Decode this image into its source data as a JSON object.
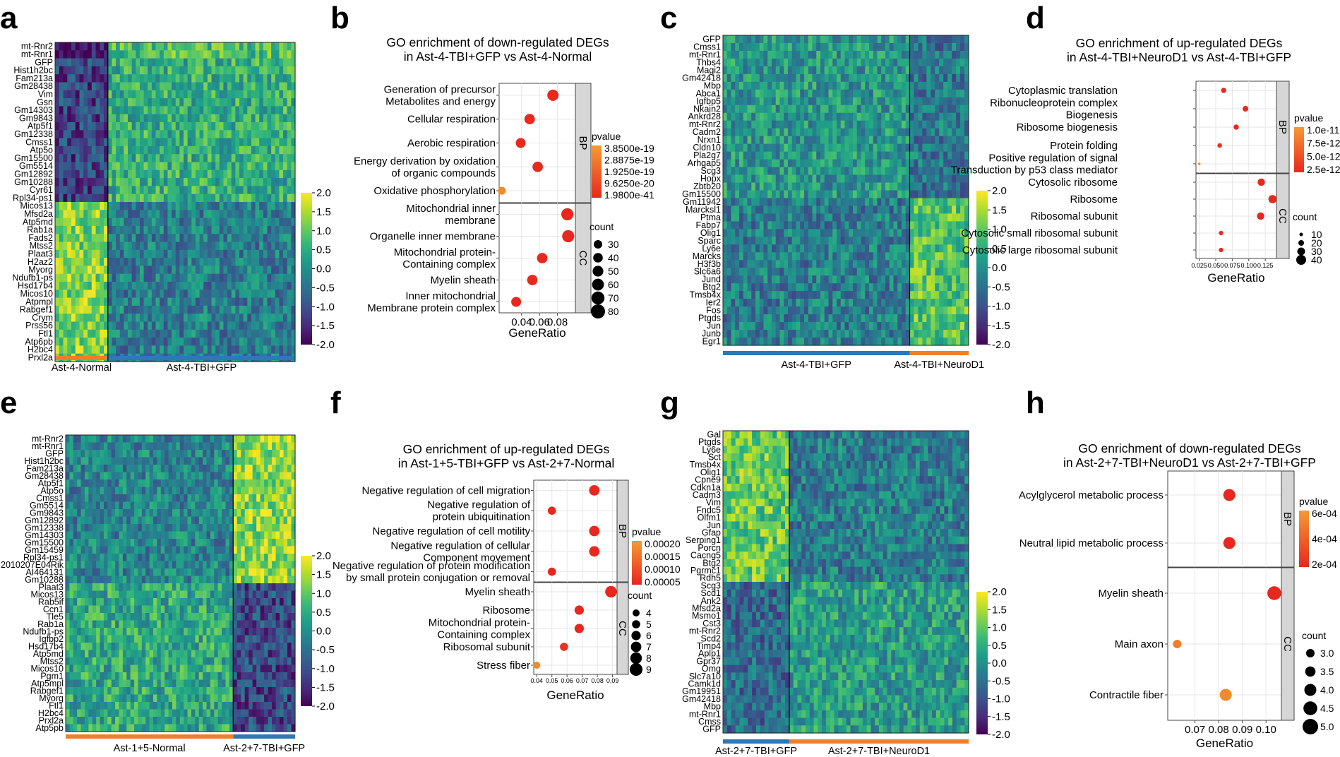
{
  "panel_letters": [
    "a",
    "b",
    "c",
    "d",
    "e",
    "f",
    "g",
    "h"
  ],
  "colors": {
    "orange": "#f07f2a",
    "blue": "#2e78b5",
    "red": "#e8281e",
    "strip_bg": "#d6d6d6",
    "viridis": [
      "#440154",
      "#482878",
      "#3e4a89",
      "#31688e",
      "#26828e",
      "#1f9e89",
      "#35b779",
      "#6ece58",
      "#b5de2b",
      "#fde725"
    ]
  },
  "chart_data": [
    {
      "id": "a",
      "type": "heatmap",
      "genes": [
        "mt-Rnr2",
        "mt-Rnr1",
        "GFP",
        "Hist1h2bc",
        "Fam213a",
        "Gm28438",
        "Vim",
        "Gsn",
        "Gm14303",
        "Gm9843",
        "Atp5f1",
        "Gm12338",
        "Cmss1",
        "Atp5o",
        "Gm15500",
        "Gm5514",
        "Gm12892",
        "Gm10288",
        "Cyr61",
        "Rpl34-ps1",
        "Micos13",
        "Mfsd2a",
        "Atp5md",
        "Rab1a",
        "Fads2",
        "Mtss2",
        "Plaat3",
        "H2az2",
        "Myorg",
        "Ndufb1-ps",
        "Hsd17b4",
        "Micos10",
        "Atpmpl",
        "Rabgef1",
        "Crym",
        "Prss56",
        "Ftl1",
        "Atp6pb",
        "H2bc4",
        "Prxl2a"
      ],
      "groups": [
        {
          "name": "Ast-4-Normal",
          "color": "orange",
          "fraction": 0.22
        },
        {
          "name": "Ast-4-TBI+GFP",
          "color": "blue",
          "fraction": 0.78
        }
      ],
      "colorbar": {
        "min": -2.0,
        "max": 2.0,
        "ticks": [
          "2.0",
          "1.5",
          "1.0",
          "0.5",
          "0.0",
          "-0.5",
          "-1.0",
          "-1.5",
          "-2.0"
        ]
      }
    },
    {
      "id": "b",
      "type": "scatter",
      "title": [
        "GO enrichment of down-regulated DEGs",
        "in Ast-4-TBI+GFP vs Ast-4-Normal"
      ],
      "xlabel": "GeneRatio",
      "xlim": [
        0.015,
        0.1
      ],
      "xticks": [
        {
          "v": 0.04,
          "label": "0.04"
        },
        {
          "v": 0.06,
          "label": "0.06"
        },
        {
          "v": 0.08,
          "label": "0.08"
        }
      ],
      "facets": [
        {
          "name": "BP",
          "terms": [
            {
              "label": [
                "Generation of precursor",
                "Metabolites and energy"
              ],
              "x": 0.075,
              "count": 55,
              "color": "#e8291d"
            },
            {
              "label": [
                "Cellular respiration"
              ],
              "x": 0.049,
              "count": 48,
              "color": "#e8291d"
            },
            {
              "label": [
                "Aerobic respiration"
              ],
              "x": 0.039,
              "count": 42,
              "color": "#e8291d"
            },
            {
              "label": [
                "Energy derivation by oxidation",
                "of organic compounds"
              ],
              "x": 0.058,
              "count": 48,
              "color": "#e8291d"
            },
            {
              "label": [
                "Oxidative phosphorylation"
              ],
              "x": 0.018,
              "count": 25,
              "color": "#f08a2c"
            }
          ]
        },
        {
          "name": "CC",
          "terms": [
            {
              "label": [
                "Mitochondrial inner",
                "membrane"
              ],
              "x": 0.091,
              "count": 62,
              "color": "#e8281e"
            },
            {
              "label": [
                "Organelle inner membrane"
              ],
              "x": 0.092,
              "count": 62,
              "color": "#e8281e"
            },
            {
              "label": [
                "Mitochondrial protein-",
                "Containing complex"
              ],
              "x": 0.063,
              "count": 48,
              "color": "#e8281e"
            },
            {
              "label": [
                "Myelin sheath"
              ],
              "x": 0.052,
              "count": 48,
              "color": "#e8281e"
            },
            {
              "label": [
                "Inner mitochondrial",
                "Membrane protein complex"
              ],
              "x": 0.034,
              "count": 42,
              "color": "#e8281e"
            }
          ]
        }
      ],
      "legend": {
        "pvalue_title": "pvalue",
        "pvalue_ticks": [
          "3.8500e-19",
          "2.8875e-19",
          "1.9250e-19",
          "9.6250e-20",
          "1.9800e-41"
        ],
        "count_title": "count",
        "count_ticks": [
          30,
          40,
          50,
          60,
          70,
          80
        ]
      }
    },
    {
      "id": "c",
      "type": "heatmap",
      "genes": [
        "GFP",
        "Cmss1",
        "mt-Rnr1",
        "Thbs4",
        "Magi2",
        "Gm42418",
        "Mbp",
        "Abca1",
        "Igfbp5",
        "Nkain2",
        "Ankrd28",
        "mt-Rnr2",
        "Cadm2",
        "Nrxn1",
        "Cldn10",
        "Pla2g7",
        "Arhgap5",
        "Scg3",
        "Hopx",
        "Zbtb20",
        "Gm15500",
        "Gm11942",
        "Marcksl1",
        "Ptma",
        "Fabp7",
        "Olig1",
        "Sparc",
        "Ly6e",
        "Marcks",
        "H3f3b",
        "Slc6a6",
        "Jund",
        "Btg2",
        "Tmsb4x",
        "Ier2",
        "Fos",
        "Ptgds",
        "Jun",
        "Junb",
        "Egr1"
      ],
      "groups": [
        {
          "name": "Ast-4-TBI+GFP",
          "color": "blue",
          "fraction": 0.76
        },
        {
          "name": "Ast-4-TBI+NeuroD1",
          "color": "orange",
          "fraction": 0.24
        }
      ],
      "colorbar": {
        "min": -2.0,
        "max": 2.0,
        "ticks": [
          "2.0",
          "1.5",
          "1.0",
          "0.5",
          "0.0",
          "-0.5",
          "-1.0",
          "-1.5",
          "-2.0"
        ]
      }
    },
    {
      "id": "d",
      "type": "scatter",
      "title": [
        "GO enrichment of up-regulated DEGs",
        "in Ast-4-TBI+NeuroD1 vs Ast-4-TBI+GFP"
      ],
      "xlabel": "GeneRatio",
      "xlim": [
        0.02,
        0.142
      ],
      "xticks": [
        {
          "v": 0.025,
          "label": "0.025"
        },
        {
          "v": 0.05,
          "label": "0.050"
        },
        {
          "v": 0.075,
          "label": "0.075"
        },
        {
          "v": 0.1,
          "label": "0.100"
        },
        {
          "v": 0.125,
          "label": "0.125"
        }
      ],
      "facets": [
        {
          "name": "BP",
          "terms": [
            {
              "label": [
                "Cytoplasmic translation"
              ],
              "x": 0.062,
              "count": 18,
              "color": "#e8281e"
            },
            {
              "label": [
                "Ribonucleoprotein complex",
                "Biogenesis"
              ],
              "x": 0.095,
              "count": 20,
              "color": "#e8281e"
            },
            {
              "label": [
                "Ribosome biogenesis"
              ],
              "x": 0.081,
              "count": 18,
              "color": "#e8281e"
            },
            {
              "label": [
                "Protein folding"
              ],
              "x": 0.056,
              "count": 15,
              "color": "#e8331e"
            },
            {
              "label": [
                "Positive regulation of signal",
                "Transduction by p53 class mediator"
              ],
              "x": 0.025,
              "count": 5,
              "color": "#f28a2b"
            }
          ]
        },
        {
          "name": "CC",
          "terms": [
            {
              "label": [
                "Cytosolic ribosome"
              ],
              "x": 0.119,
              "count": 28,
              "color": "#e8281e"
            },
            {
              "label": [
                "Ribosome"
              ],
              "x": 0.136,
              "count": 32,
              "color": "#e8281e"
            },
            {
              "label": [
                "Ribosomal subunit"
              ],
              "x": 0.118,
              "count": 28,
              "color": "#e8281e"
            },
            {
              "label": [
                "Cytosolic small ribosomal subunit"
              ],
              "x": 0.058,
              "count": 14,
              "color": "#e8281e"
            },
            {
              "label": [
                "Cytosolic large ribosomal subunit"
              ],
              "x": 0.058,
              "count": 14,
              "color": "#e8281e"
            }
          ]
        }
      ],
      "legend": {
        "pvalue_title": "pvalue",
        "pvalue_ticks": [
          "1.0e-11",
          "7.5e-12",
          "5.0e-12",
          "2.5e-12"
        ],
        "count_title": "count",
        "count_ticks": [
          10,
          20,
          30,
          40
        ]
      }
    },
    {
      "id": "e",
      "type": "heatmap",
      "genes": [
        "mt-Rnr2",
        "mt-Rnr1",
        "GFP",
        "Hist1h2bc",
        "Fam213a",
        "Gm28438",
        "Atp5f1",
        "Atp5o",
        "Cmss1",
        "Gm5514",
        "Gm9843",
        "Gm12892",
        "Gm12338",
        "Gm14303",
        "Gm15500",
        "Gm15459",
        "Rpl34-ps1",
        "2010207E04Rik",
        "AI464131",
        "Gm10288",
        "Plaat3",
        "Micos13",
        "Rab5if",
        "Ccn1",
        "Tle5",
        "Rab1a",
        "Ndufb1-ps",
        "Igfbp2",
        "Hsd17b4",
        "Atp5md",
        "Mtss2",
        "Micos10",
        "Pgm1",
        "Atp5mpl",
        "Rabgef1",
        "Myorg",
        "Ftl1",
        "H2bc4",
        "Prxl2a",
        "Atp5pb"
      ],
      "groups": [
        {
          "name": "Ast-1+5-Normal",
          "color": "orange",
          "fraction": 0.73
        },
        {
          "name": "Ast-2+7-TBI+GFP",
          "color": "blue",
          "fraction": 0.27
        }
      ],
      "colorbar": {
        "min": -2.0,
        "max": 2.0,
        "ticks": [
          "2.0",
          "1.5",
          "1.0",
          "0.5",
          "0.0",
          "-0.5",
          "-1.0",
          "-1.5",
          "-2.0"
        ]
      }
    },
    {
      "id": "f",
      "type": "scatter",
      "title": [
        "GO enrichment of up-regulated DEGs",
        "in Ast-1+5-TBI+GFP vs Ast-2+7-Normal"
      ],
      "xlabel": "GeneRatio",
      "xlim": [
        0.038,
        0.093
      ],
      "xticks": [
        {
          "v": 0.04,
          "label": "0.04"
        },
        {
          "v": 0.05,
          "label": "0.05"
        },
        {
          "v": 0.06,
          "label": "0.06"
        },
        {
          "v": 0.07,
          "label": "0.07"
        },
        {
          "v": 0.08,
          "label": "0.08"
        },
        {
          "v": 0.09,
          "label": "0.09"
        }
      ],
      "facets": [
        {
          "name": "BP",
          "terms": [
            {
              "label": [
                "Negative regulation of cell migration"
              ],
              "x": 0.078,
              "count": 7,
              "color": "#e8281e"
            },
            {
              "label": [
                "Negative regulation of",
                "protein ubiquitination"
              ],
              "x": 0.05,
              "count": 5,
              "color": "#e8281e"
            },
            {
              "label": [
                "Negative regulation of cell motility"
              ],
              "x": 0.078,
              "count": 7,
              "color": "#e8281e"
            },
            {
              "label": [
                "Negative regulation of cellular",
                "Component movement"
              ],
              "x": 0.078,
              "count": 7,
              "color": "#e8281e"
            },
            {
              "label": [
                "Negative regulation of protein modification",
                "by small protein conjugation or removal"
              ],
              "x": 0.05,
              "count": 5,
              "color": "#e8281e"
            }
          ]
        },
        {
          "name": "CC",
          "terms": [
            {
              "label": [
                "Myelin sheath"
              ],
              "x": 0.089,
              "count": 8,
              "color": "#e8281e"
            },
            {
              "label": [
                "Ribosome"
              ],
              "x": 0.068,
              "count": 6,
              "color": "#e8281e"
            },
            {
              "label": [
                "Mitochondrial protein-",
                "Containing complex"
              ],
              "x": 0.068,
              "count": 6,
              "color": "#e8281e"
            },
            {
              "label": [
                "Ribosomal subunit"
              ],
              "x": 0.058,
              "count": 5,
              "color": "#e8331e"
            },
            {
              "label": [
                "Stress fiber"
              ],
              "x": 0.04,
              "count": 4,
              "color": "#f28a2b"
            }
          ]
        }
      ],
      "legend": {
        "pvalue_title": "pvalue",
        "pvalue_ticks": [
          "0.00020",
          "0.00015",
          "0.00010",
          "0.00005"
        ],
        "count_title": "count",
        "count_ticks": [
          4,
          5,
          6,
          7,
          8,
          9
        ]
      }
    },
    {
      "id": "g",
      "type": "heatmap",
      "genes": [
        "Gal",
        "Ptgds",
        "Ly6e",
        "Sct",
        "Tmsb4x",
        "Olig1",
        "Cpne9",
        "Cdkn1a",
        "Cadm3",
        "Vim",
        "Fndc5",
        "Olfm1",
        "Jun",
        "Gfap",
        "Serping1",
        "Porcn",
        "Cacng5",
        "Btg2",
        "Pgrmc1",
        "Rdh5",
        "Scg3",
        "Scd1",
        "Ank2",
        "Mfsd2a",
        "Msmo1",
        "Cst3",
        "mt-Rnr2",
        "Scd2",
        "Timp4",
        "Aplp1",
        "Gpr37",
        "Omg",
        "Slc7a10",
        "Camk1d",
        "Gm19951",
        "Gm42418",
        "Mbp",
        "mt-Rnr1",
        "Cmss",
        "GFP"
      ],
      "groups": [
        {
          "name": "Ast-2+7-TBI+GFP",
          "color": "blue",
          "fraction": 0.27
        },
        {
          "name": "Ast-2+7-TBI+NeuroD1",
          "color": "orange",
          "fraction": 0.73
        }
      ],
      "colorbar": {
        "min": -2.0,
        "max": 2.0,
        "ticks": [
          "2.0",
          "1.5",
          "1.0",
          "0.5",
          "0.0",
          "-0.5",
          "-1.0",
          "-1.5",
          "-2.0"
        ]
      }
    },
    {
      "id": "h",
      "type": "scatter",
      "title": [
        "GO enrichment of down-regulated DEGs",
        "in Ast-2+7-TBI+NeuroD1 vs Ast-2+7-TBI+GFP"
      ],
      "xlabel": "GeneRatio",
      "xlim": [
        0.0585,
        0.1065
      ],
      "xticks": [
        {
          "v": 0.07,
          "label": "0.07"
        },
        {
          "v": 0.08,
          "label": "0.08"
        },
        {
          "v": 0.09,
          "label": "0.09"
        },
        {
          "v": 0.1,
          "label": "0.10"
        }
      ],
      "facets": [
        {
          "name": "BP",
          "terms": [
            {
              "label": [
                "Acylglycerol metabolic process"
              ],
              "x": 0.0845,
              "count": 4.0,
              "color": "#e8281e"
            },
            {
              "label": [
                "Neutral lipid metabolic process"
              ],
              "x": 0.0845,
              "count": 4.0,
              "color": "#e8281e"
            }
          ]
        },
        {
          "name": "CC",
          "terms": [
            {
              "label": [
                "Myelin sheath"
              ],
              "x": 0.1035,
              "count": 4.5,
              "color": "#e8281e"
            },
            {
              "label": [
                "Main axon"
              ],
              "x": 0.0625,
              "count": 3.0,
              "color": "#f07d2a"
            },
            {
              "label": [
                "Contractile fiber"
              ],
              "x": 0.083,
              "count": 4.0,
              "color": "#f08a2c"
            }
          ]
        }
      ],
      "legend": {
        "pvalue_title": "pvalue",
        "pvalue_ticks": [
          "6e-04",
          "4e-04",
          "2e-04"
        ],
        "count_title": "count",
        "count_ticks": [
          "3.0",
          "3.5",
          "4.0",
          "4.5",
          "5.0"
        ]
      }
    }
  ]
}
